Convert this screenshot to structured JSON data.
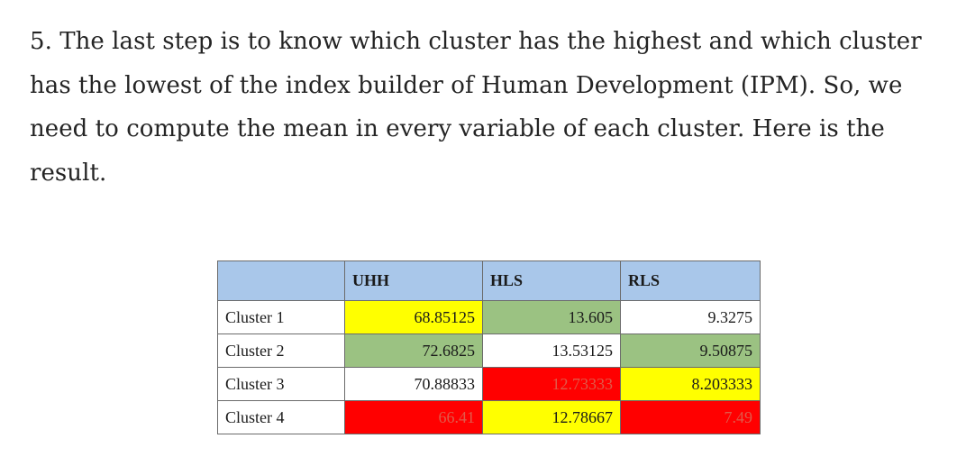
{
  "paragraph": "5. The last step is to know which cluster has the highest and which cluster has the lowest of the index builder of Human Development (IPM). So, we need to compute the mean in every variable of each cluster. Here is the result.",
  "table": {
    "columns": [
      "",
      "UHH",
      "HLS",
      "RLS"
    ],
    "rows": [
      {
        "label": "Cluster 1",
        "cells": [
          {
            "value": "68.85125",
            "color": "#ffff00",
            "text_color": "#1a1a1a"
          },
          {
            "value": "13.605",
            "color": "#9bc282",
            "text_color": "#1a1a1a"
          },
          {
            "value": "9.3275",
            "color": "#ffffff",
            "text_color": "#1a1a1a"
          }
        ]
      },
      {
        "label": "Cluster 2",
        "cells": [
          {
            "value": "72.6825",
            "color": "#9bc282",
            "text_color": "#1a1a1a"
          },
          {
            "value": "13.53125",
            "color": "#ffffff",
            "text_color": "#1a1a1a"
          },
          {
            "value": "9.50875",
            "color": "#9bc282",
            "text_color": "#1a1a1a"
          }
        ]
      },
      {
        "label": "Cluster 3",
        "cells": [
          {
            "value": "70.88833",
            "color": "#ffffff",
            "text_color": "#1a1a1a"
          },
          {
            "value": "12.73333",
            "color": "#ff0000",
            "text_color": "#e05a4a"
          },
          {
            "value": "8.203333",
            "color": "#ffff00",
            "text_color": "#1a1a1a"
          }
        ]
      },
      {
        "label": "Cluster 4",
        "cells": [
          {
            "value": "66.41",
            "color": "#ff0000",
            "text_color": "#e05a4a"
          },
          {
            "value": "12.78667",
            "color": "#ffff00",
            "text_color": "#1a1a1a"
          },
          {
            "value": "7.49",
            "color": "#ff0000",
            "text_color": "#e05a4a"
          }
        ]
      }
    ]
  }
}
